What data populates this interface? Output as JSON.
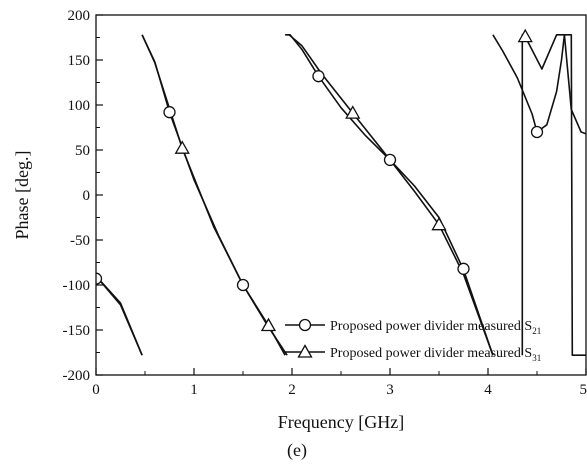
{
  "chart_data": {
    "type": "line",
    "xlabel": "Frequency [GHz]",
    "ylabel": "Phase [deg.]",
    "caption": "(e)",
    "xlim": [
      0,
      5
    ],
    "ylim": [
      -200,
      200
    ],
    "x_ticks": [
      0,
      1,
      2,
      3,
      4,
      5
    ],
    "y_ticks": [
      -200,
      -150,
      -100,
      -50,
      0,
      50,
      100,
      150,
      200
    ],
    "legend_position": "bottom-right",
    "grid": false,
    "series": [
      {
        "name": "Proposed power divider measured S21",
        "name_main": "Proposed power divider measured S",
        "name_sub": "21",
        "marker": "circle",
        "color": "#111111",
        "segments": [
          [
            [
              0,
              -90
            ],
            [
              0.25,
              -120
            ],
            [
              0.47,
              -178
            ]
          ],
          [
            [
              0.47,
              178
            ],
            [
              0.6,
              148
            ],
            [
              0.75,
              92
            ],
            [
              1.0,
              17
            ],
            [
              1.25,
              -45
            ],
            [
              1.5,
              -100
            ],
            [
              1.75,
              -145
            ],
            [
              1.95,
              -178
            ]
          ],
          [
            [
              1.95,
              178
            ],
            [
              1.98,
              178
            ],
            [
              2.1,
              162
            ],
            [
              2.27,
              132
            ],
            [
              2.5,
              97
            ],
            [
              2.75,
              66
            ],
            [
              3.0,
              39
            ],
            [
              3.25,
              10
            ],
            [
              3.5,
              -25
            ],
            [
              3.75,
              -83
            ],
            [
              4.05,
              -178
            ]
          ],
          [
            [
              4.05,
              178
            ],
            [
              4.15,
              160
            ],
            [
              4.3,
              130
            ],
            [
              4.45,
              90
            ],
            [
              4.5,
              70
            ],
            [
              4.6,
              78
            ],
            [
              4.7,
              115
            ],
            [
              4.75,
              150
            ],
            [
              4.78,
              178
            ]
          ],
          [
            [
              4.78,
              178
            ],
            [
              4.85,
              95
            ],
            [
              4.95,
              70
            ],
            [
              5.0,
              68
            ]
          ]
        ],
        "markers_x": [
          0.0,
          0.75,
          1.5,
          2.27,
          3.0,
          3.75,
          4.5
        ],
        "markers_y": [
          -93,
          92,
          -100,
          132,
          39,
          -82,
          70
        ]
      },
      {
        "name": "Proposed power divider measured S31",
        "name_main": "Proposed power divider measured S",
        "name_sub": "31",
        "marker": "triangle",
        "color": "#111111",
        "segments": [
          [
            [
              0,
              -90
            ],
            [
              0.25,
              -122
            ],
            [
              0.47,
              -178
            ]
          ],
          [
            [
              0.47,
              178
            ],
            [
              0.6,
              147
            ],
            [
              0.88,
              52
            ],
            [
              1.2,
              -35
            ],
            [
              1.5,
              -100
            ],
            [
              1.76,
              -145
            ],
            [
              1.93,
              -178
            ]
          ],
          [
            [
              1.93,
              178
            ],
            [
              1.97,
              178
            ],
            [
              2.1,
              166
            ],
            [
              2.3,
              135
            ],
            [
              2.62,
              91
            ],
            [
              3.0,
              39
            ],
            [
              3.25,
              4
            ],
            [
              3.5,
              -33
            ],
            [
              3.75,
              -88
            ],
            [
              4.05,
              -178
            ]
          ],
          [
            [
              4.35,
              -178
            ],
            [
              4.35,
              178
            ],
            [
              4.38,
              176
            ],
            [
              4.55,
              140
            ],
            [
              4.7,
              178
            ],
            [
              4.85,
              178
            ],
            [
              4.86,
              -178
            ],
            [
              5.0,
              -178
            ]
          ]
        ],
        "markers_x": [
          0.88,
          1.76,
          2.62,
          3.5,
          4.38
        ],
        "markers_y": [
          52,
          -145,
          91,
          -33,
          176
        ]
      }
    ]
  }
}
